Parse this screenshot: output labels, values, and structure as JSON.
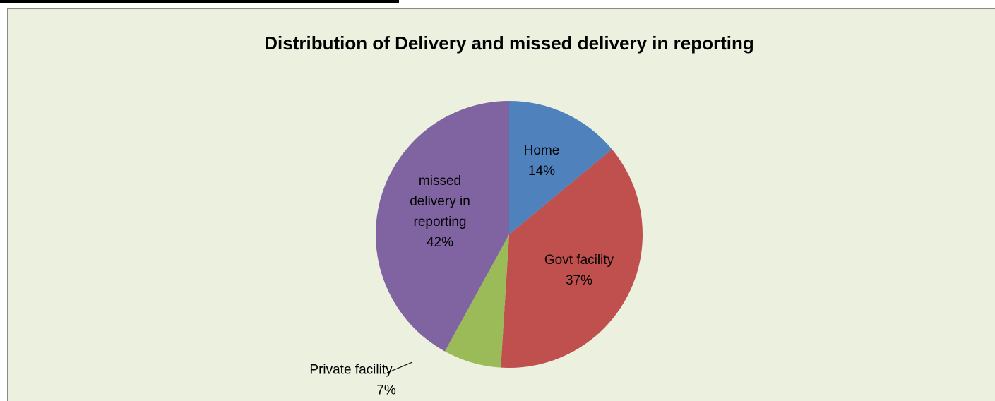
{
  "chart_data": {
    "type": "pie",
    "title": "Distribution of Delivery and missed delivery in reporting",
    "categories": [
      "Home",
      "Govt facility",
      "Private facility",
      "missed delivery in reporting"
    ],
    "values": [
      14,
      37,
      7,
      42
    ],
    "value_labels": [
      "14%",
      "37%",
      "7%",
      "42%"
    ],
    "colors": [
      "#4f81bd",
      "#c0504d",
      "#9bbb59",
      "#8064a2"
    ]
  }
}
